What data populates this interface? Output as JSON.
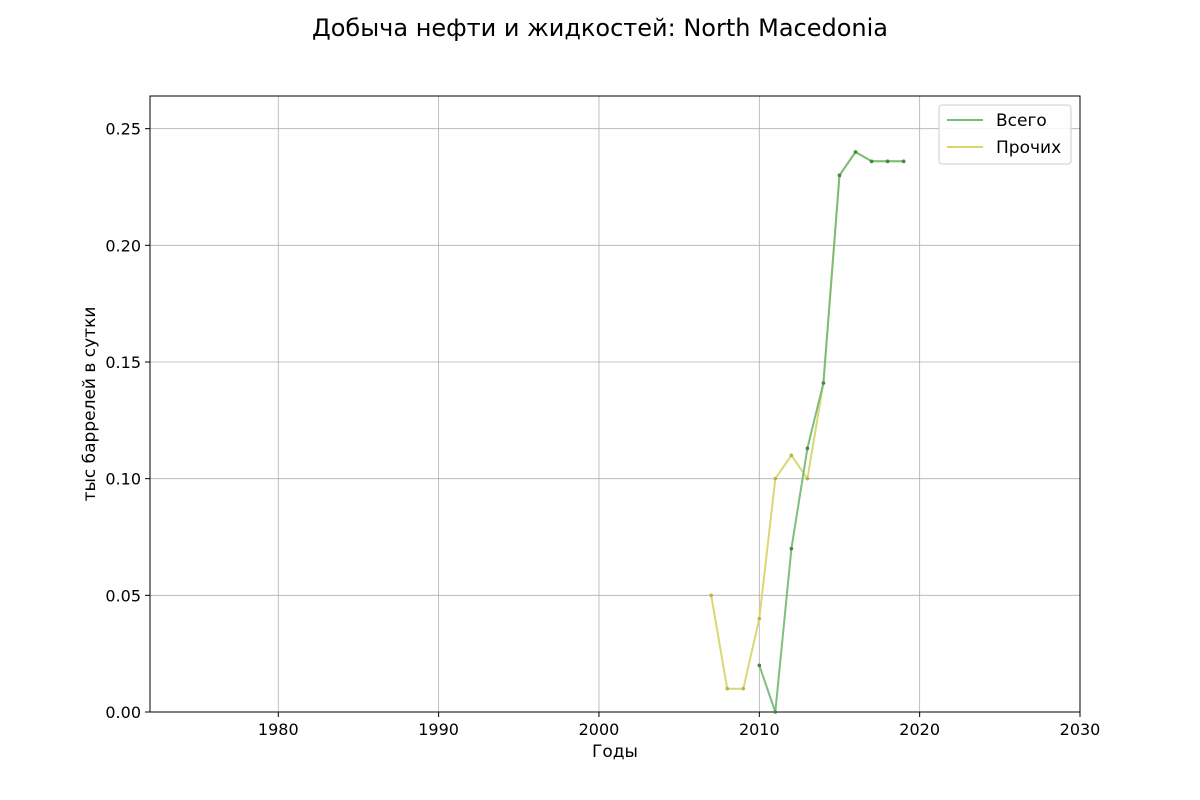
{
  "chart_data": {
    "type": "line",
    "title": "Добыча нефти и жидкостей: North Macedonia",
    "xlabel": "Годы",
    "ylabel": "тыс баррелей в сутки",
    "xlim": [
      1972,
      2030
    ],
    "ylim": [
      0,
      0.264
    ],
    "xticks": [
      1980,
      1990,
      2000,
      2010,
      2020,
      2030
    ],
    "yticks": [
      0.0,
      0.05,
      0.1,
      0.15,
      0.2,
      0.25
    ],
    "ytick_labels": [
      "0.00",
      "0.05",
      "0.10",
      "0.15",
      "0.20",
      "0.25"
    ],
    "grid": true,
    "legend_position": "top-right",
    "series": [
      {
        "name": "Всего",
        "color": "#77bb77",
        "marker_color": "#448844",
        "x": [
          2010,
          2011,
          2012,
          2013,
          2014,
          2015,
          2016,
          2017,
          2018,
          2019
        ],
        "y": [
          0.02,
          0.0,
          0.07,
          0.113,
          0.141,
          0.23,
          0.24,
          0.236,
          0.236,
          0.236
        ]
      },
      {
        "name": "Прочих",
        "color": "#d8d66a",
        "marker_color": "#b8b640",
        "x": [
          2007,
          2008,
          2009,
          2010,
          2011,
          2012,
          2013,
          2014,
          2015,
          2016,
          2017,
          2018,
          2019
        ],
        "y": [
          0.05,
          0.01,
          0.01,
          0.04,
          0.1,
          0.11,
          0.1,
          0.141,
          0.23,
          0.24,
          0.236,
          0.236,
          0.236
        ]
      }
    ]
  }
}
